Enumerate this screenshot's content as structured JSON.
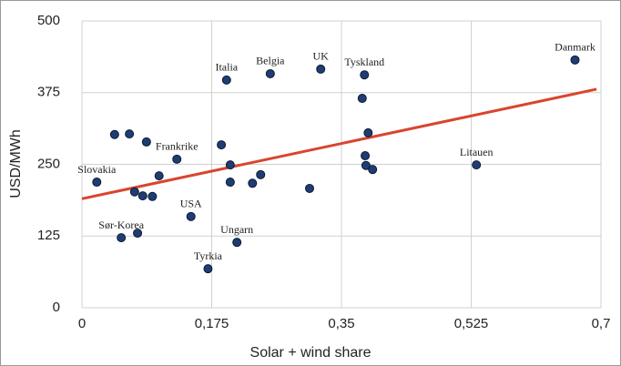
{
  "chart_data": {
    "type": "scatter",
    "xlabel": "Solar + wind share",
    "ylabel": "USD/MWh",
    "xlim": [
      0,
      0.7
    ],
    "ylim": [
      0,
      500
    ],
    "xticks": [
      0,
      {
        "value": 0.175,
        "label": "0,175"
      },
      {
        "value": 0.35,
        "label": "0,35"
      },
      {
        "value": 0.525,
        "label": "0,525"
      },
      {
        "value": 0.7,
        "label": "0,7"
      }
    ],
    "yticks": [
      0,
      125,
      250,
      375,
      500
    ],
    "grid": true,
    "color": "#1f3d73",
    "x": [
      0.665,
      0.532,
      0.381,
      0.322,
      0.254,
      0.195,
      0.128,
      0.02,
      0.053,
      0.147,
      0.209,
      0.17,
      0.044,
      0.064,
      0.087,
      0.188,
      0.2,
      0.104,
      0.071,
      0.082,
      0.095,
      0.2,
      0.23,
      0.241,
      0.307,
      0.075,
      0.378,
      0.386,
      0.382,
      0.383,
      0.392
    ],
    "values": [
      432,
      249,
      406,
      416,
      408,
      397,
      259,
      219,
      122,
      159,
      114,
      68,
      302,
      303,
      289,
      284,
      249,
      230,
      202,
      195,
      194,
      219,
      217,
      232,
      208,
      130,
      365,
      305,
      265,
      248,
      241
    ],
    "labels": [
      "Danmark",
      "Litauen",
      "Tyskland",
      "UK",
      "Belgia",
      "Italia",
      "Frankrike",
      "Slovakia",
      "Sør-Korea",
      "USA",
      "Ungarn",
      "Tyrkia",
      null,
      null,
      null,
      null,
      null,
      null,
      null,
      null,
      null,
      null,
      null,
      null,
      null,
      null,
      null,
      null,
      null,
      null,
      null
    ],
    "trendline": {
      "x": [
        0,
        0.694
      ],
      "y": [
        190,
        381
      ],
      "color": "#d9452f"
    }
  }
}
